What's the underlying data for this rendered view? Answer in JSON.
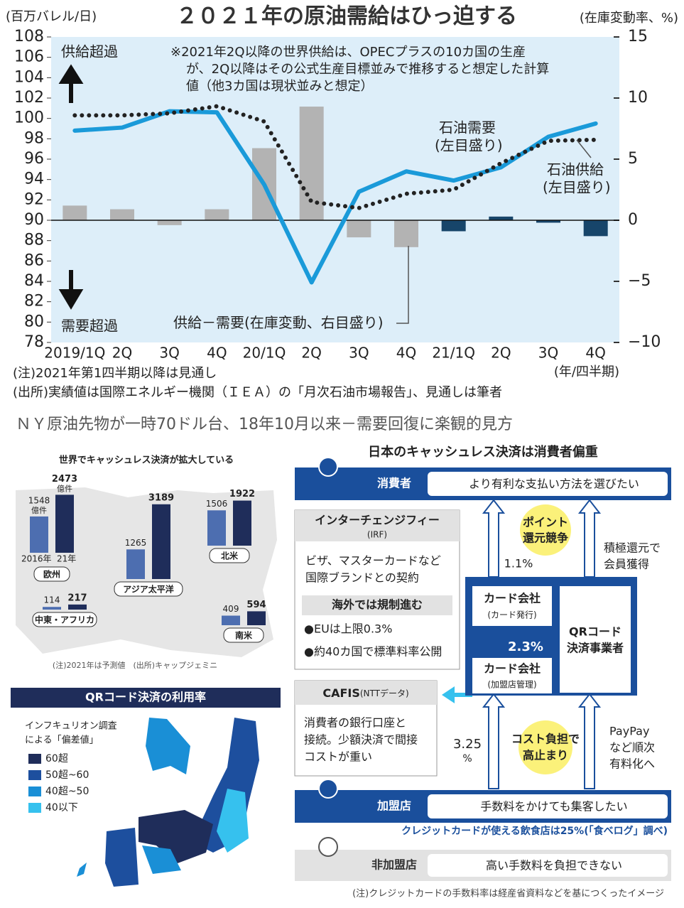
{
  "chart_data": [
    {
      "type": "combo",
      "title": "２０２１年の原油需給はひっ迫する",
      "y_label": "(百万バレル/日)",
      "y2_label": "(在庫変動率、%)",
      "x_label": "(年/四半期)",
      "categories": [
        "2019/1Q",
        "2Q",
        "3Q",
        "4Q",
        "20/1Q",
        "2Q",
        "3Q",
        "4Q",
        "21/1Q",
        "2Q",
        "3Q",
        "4Q"
      ],
      "series": [
        {
          "name": "石油需要",
          "axis_note": "(左目盛り)",
          "type": "line",
          "style": "solid",
          "color": "#1a9ad9",
          "values": [
            98.8,
            99.1,
            100.7,
            100.6,
            93.5,
            83.9,
            92.8,
            94.8,
            93.9,
            95.2,
            98.2,
            99.5
          ]
        },
        {
          "name": "石油供給",
          "axis_note": "(左目盛り)",
          "type": "line",
          "style": "dotted",
          "color": "#222222",
          "values": [
            100.3,
            100.3,
            100.5,
            101.2,
            99.7,
            91.8,
            91.2,
            92.6,
            93.0,
            95.6,
            97.8,
            97.9
          ]
        },
        {
          "name": "供給－需要",
          "axis_note": "(在庫変動、右目盛り)",
          "type": "bar",
          "axis": "y2",
          "colors": [
            "#b3b3b3",
            "#b3b3b3",
            "#b3b3b3",
            "#b3b3b3",
            "#b3b3b3",
            "#b3b3b3",
            "#b3b3b3",
            "#b3b3b3",
            "#17456a",
            "#17456a",
            "#17456a",
            "#17456a"
          ],
          "values": [
            1.2,
            0.9,
            -0.4,
            0.9,
            5.9,
            9.3,
            -1.4,
            -2.2,
            -0.9,
            0.3,
            -0.2,
            -1.3
          ]
        }
      ],
      "ylim": [
        78,
        108
      ],
      "yticks": [
        78,
        80,
        82,
        84,
        86,
        88,
        90,
        92,
        94,
        96,
        98,
        100,
        102,
        104,
        106,
        108
      ],
      "y2lim": [
        -10,
        15
      ],
      "y2ticks": [
        {
          "value": -10,
          "label": "−10"
        },
        {
          "value": -5,
          "label": "−5"
        },
        0,
        5,
        10,
        15
      ],
      "annotations": [
        "供給超過",
        "需要超過"
      ],
      "note": [
        "※2021年2Q以降の世界供給は、OPECプラスの10カ国の生産",
        "が、2Q以降はその公式生産目標並みで推移すると想定した計算",
        "値（他3カ国は現状並みと想定）"
      ],
      "footnotes": [
        "(注)2021年第1四半期以降は見通し",
        "(出所)実績値は国際エネルギー機関（ＩＥＡ）の「月次石油市場報告」、見通しは筆者"
      ]
    },
    {
      "type": "bar",
      "title": "世界でキャッシュレス決済が拡大している",
      "unit": "億件",
      "categories": [
        "欧州",
        "アジア太平洋",
        "北米",
        "中東・アフリカ",
        "南米"
      ],
      "series": [
        {
          "name": "2016年",
          "color": "#4d6eb0",
          "values": [
            1548,
            1265,
            1506,
            114,
            409
          ]
        },
        {
          "name": "21年",
          "color": "#1f2d5a",
          "values": [
            2473,
            3189,
            1922,
            217,
            594
          ]
        }
      ],
      "note": "(注)2021年は予測値　(出所)キャップジェミニ"
    }
  ],
  "headline": "ＮＹ原油先物が一時70ドル台、18年10月以来－需要回復に楽観的見方",
  "map": {
    "title": "QRコード決済の利用率",
    "subtitle": [
      "インフキュリオン調査",
      "による「偏差値」"
    ],
    "legend": [
      {
        "label": "60超",
        "color": "#1f2d5a"
      },
      {
        "label": "50超~60",
        "color": "#1d4f9e"
      },
      {
        "label": "40超~50",
        "color": "#1a8fd6"
      },
      {
        "label": "40以下",
        "color": "#36c1ee"
      }
    ]
  },
  "diagram": {
    "title": "日本のキャッシュレス決済は消費者偏重",
    "consumer": {
      "label": "消費者",
      "text": "より有利な支払い方法を選びたい"
    },
    "irf": {
      "title": "インターチェンジフィー",
      "abbr": "(IRF)",
      "body": [
        "ビザ、マスターカードなど",
        "国際ブランドとの契約"
      ],
      "sub_title": "海外では規制進む",
      "bullets": [
        "●EUは上限0.3%",
        "●約40カ国で標準料率公開"
      ]
    },
    "point": [
      "ポイント",
      "還元競争"
    ],
    "rate_issuer": "1.1%",
    "member": [
      "積極還元で",
      "会員獲得"
    ],
    "issuer": {
      "label": "カード会社",
      "sub": "(カード発行)"
    },
    "rate_card": "2.3%",
    "acquirer": {
      "label": "カード会社",
      "sub": "(加盟店管理)"
    },
    "qr": [
      "QRコード",
      "決済事業者"
    ],
    "cafis": {
      "title": "CAFIS",
      "sub": "(NTTデータ)",
      "body": [
        "消費者の銀行口座と",
        "接続。少額決済で間接",
        "コストが重い"
      ]
    },
    "rate_merchant": [
      "3.25",
      "%"
    ],
    "cost": [
      "コスト負担で",
      "高止まり"
    ],
    "paypay": [
      "PayPay",
      "など順次",
      "有料化へ"
    ],
    "merchant": {
      "label": "加盟店",
      "text": "手数料をかけても集客したい"
    },
    "restaurant": "クレジットカードが使える飲食店は25%(「食べログ」調べ)",
    "non_merchant": {
      "label": "非加盟店",
      "text": "高い手数料を負担できない"
    },
    "note": "(注)クレジットカードの手数料率は経産省資料などを基につくったイメージ"
  }
}
